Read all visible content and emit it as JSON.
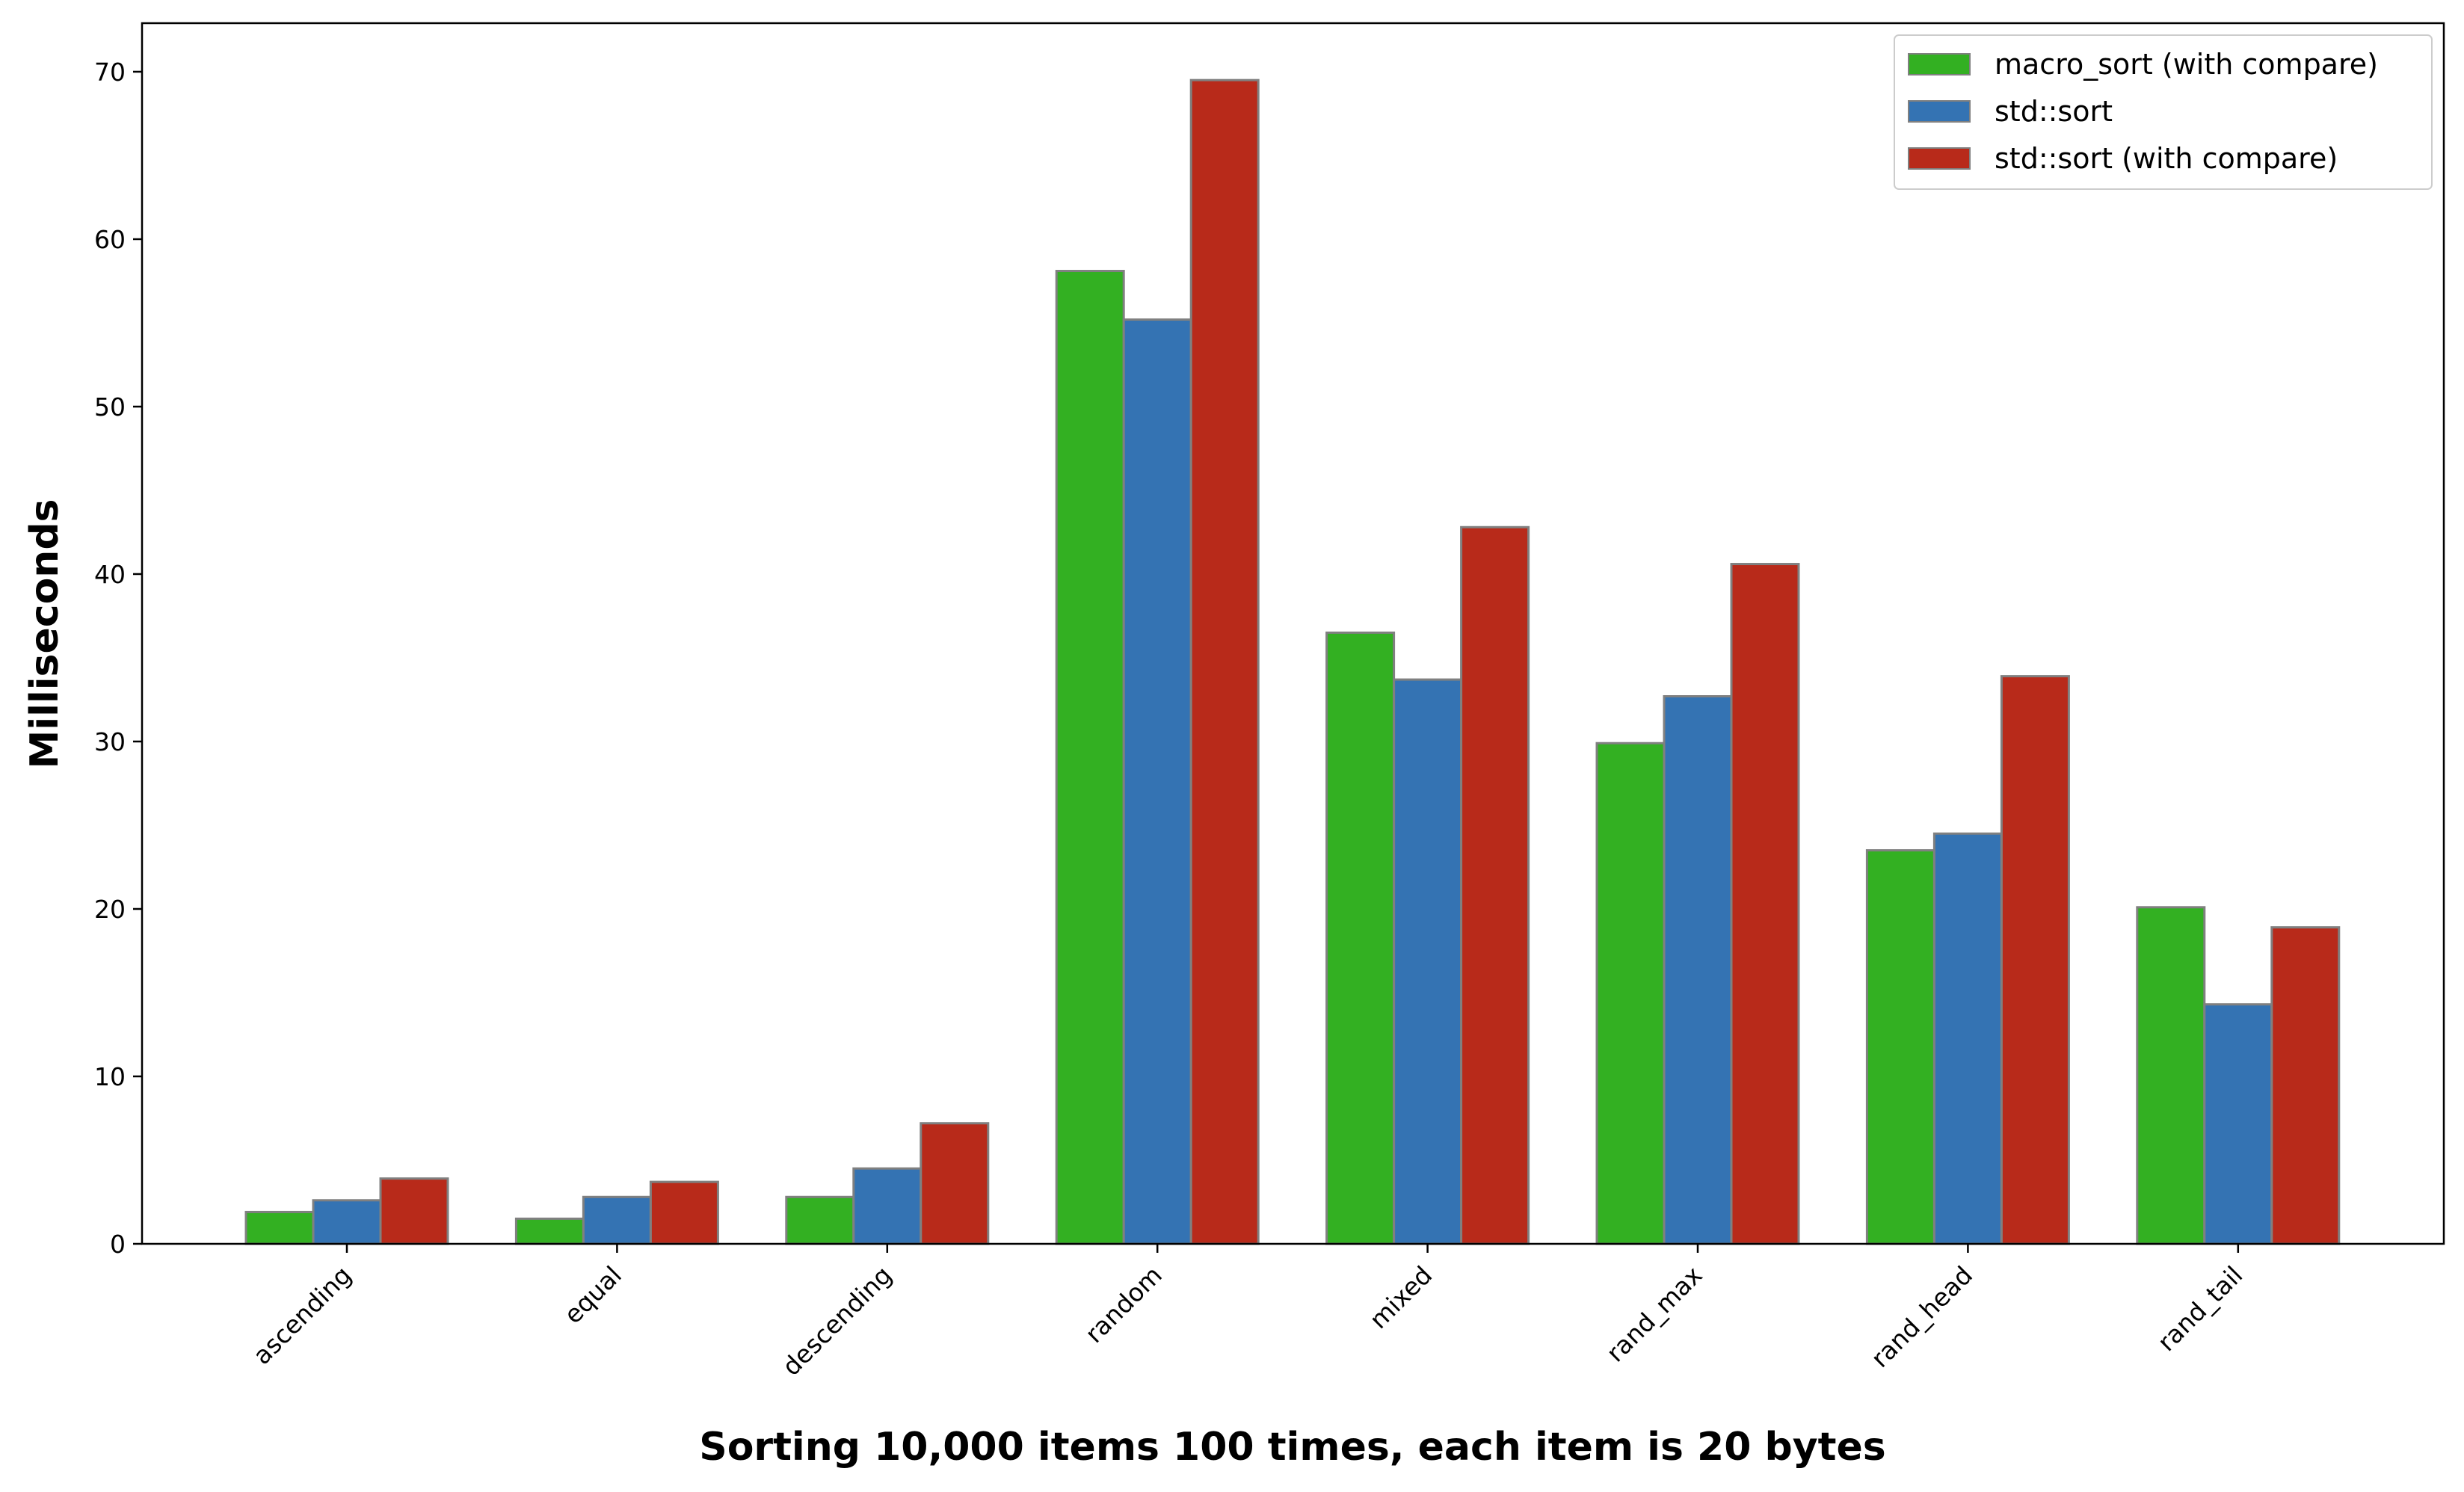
{
  "chart_data": {
    "type": "bar",
    "title": "",
    "xlabel": "Sorting 10,000 items 100 times, each item is 20 bytes",
    "ylabel": "Milliseconds",
    "ylim": [
      0,
      72.9
    ],
    "yticks": [
      0,
      10,
      20,
      30,
      40,
      50,
      60,
      70
    ],
    "categories": [
      "ascending",
      "equal",
      "descending",
      "random",
      "mixed",
      "rand_max",
      "rand_head",
      "rand_tail"
    ],
    "series": [
      {
        "name": "macro_sort (with compare)",
        "color": "#33b022",
        "values": [
          1.9,
          1.5,
          2.8,
          58.1,
          36.5,
          29.9,
          23.5,
          20.1
        ]
      },
      {
        "name": "std::sort",
        "color": "#3473b3",
        "values": [
          2.6,
          2.8,
          4.5,
          55.2,
          33.7,
          32.7,
          24.5,
          14.3
        ]
      },
      {
        "name": "std::sort (with compare)",
        "color": "#b82a1a",
        "values": [
          3.9,
          3.7,
          7.2,
          69.5,
          42.8,
          40.6,
          33.9,
          18.9
        ]
      }
    ],
    "bar_edge_color": "#808080",
    "grid": false,
    "legend_position": "top-right"
  }
}
